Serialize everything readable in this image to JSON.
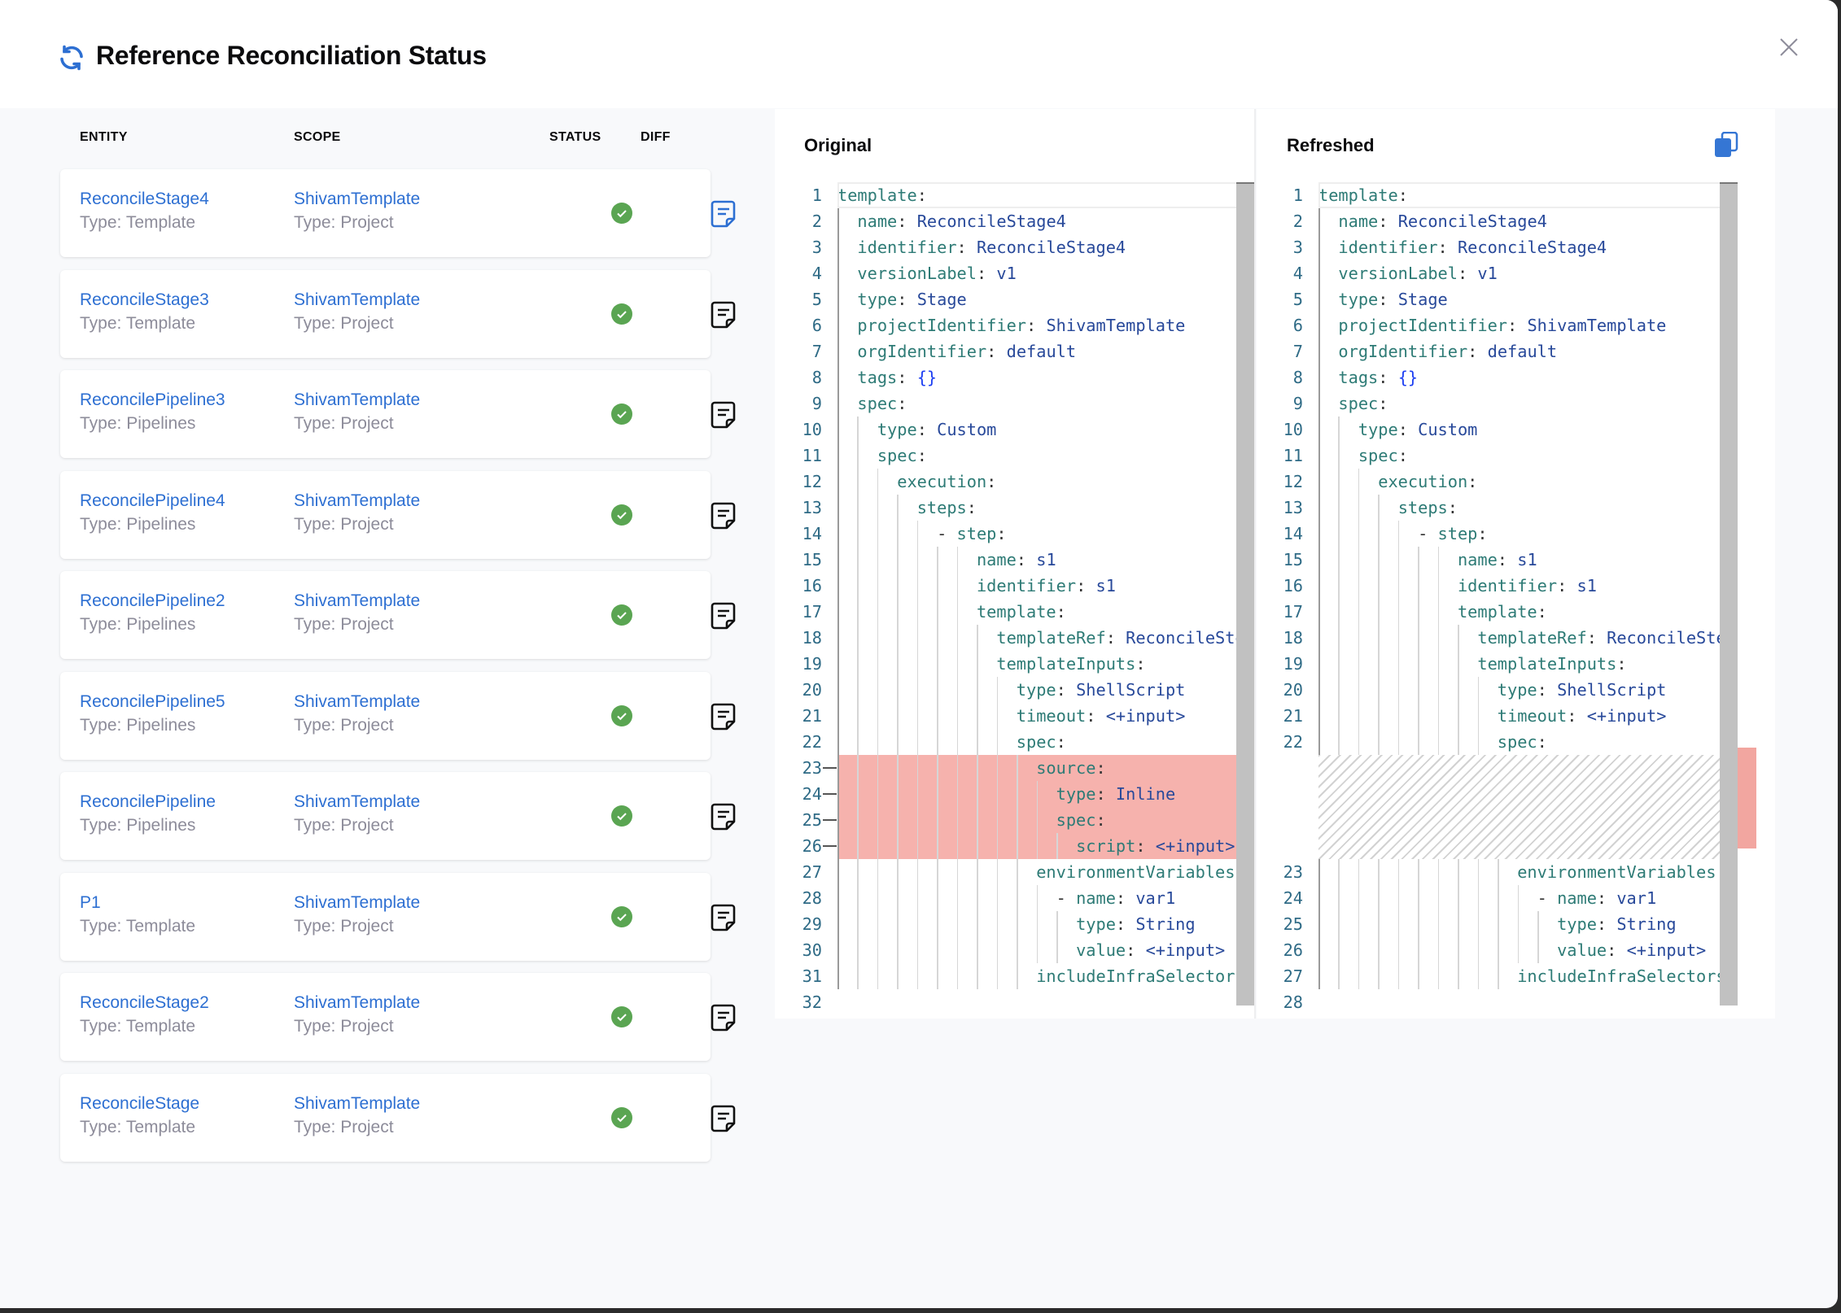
{
  "dialog": {
    "title": "Reference Reconciliation Status",
    "title_icon": "refresh-icon",
    "close_icon": "close-icon"
  },
  "colors": {
    "accent": "#2d6fd2",
    "success": "#5aa552",
    "removed": "#f6b2ad",
    "key": "#2e7b76",
    "value": "#28499a"
  },
  "table": {
    "headers": [
      "ENTITY",
      "SCOPE",
      "STATUS",
      "DIFF"
    ],
    "rows": [
      {
        "entity": "ReconcileStage4",
        "entity_type": "Type: Template",
        "scope": "ShivamTemplate",
        "scope_type": "Type: Project",
        "status": "success",
        "diff_selected": true
      },
      {
        "entity": "ReconcileStage3",
        "entity_type": "Type: Template",
        "scope": "ShivamTemplate",
        "scope_type": "Type: Project",
        "status": "success",
        "diff_selected": false
      },
      {
        "entity": "ReconcilePipeline3",
        "entity_type": "Type: Pipelines",
        "scope": "ShivamTemplate",
        "scope_type": "Type: Project",
        "status": "success",
        "diff_selected": false
      },
      {
        "entity": "ReconcilePipeline4",
        "entity_type": "Type: Pipelines",
        "scope": "ShivamTemplate",
        "scope_type": "Type: Project",
        "status": "success",
        "diff_selected": false
      },
      {
        "entity": "ReconcilePipeline2",
        "entity_type": "Type: Pipelines",
        "scope": "ShivamTemplate",
        "scope_type": "Type: Project",
        "status": "success",
        "diff_selected": false
      },
      {
        "entity": "ReconcilePipeline5",
        "entity_type": "Type: Pipelines",
        "scope": "ShivamTemplate",
        "scope_type": "Type: Project",
        "status": "success",
        "diff_selected": false
      },
      {
        "entity": "ReconcilePipeline",
        "entity_type": "Type: Pipelines",
        "scope": "ShivamTemplate",
        "scope_type": "Type: Project",
        "status": "success",
        "diff_selected": false
      },
      {
        "entity": "P1",
        "entity_type": "Type: Template",
        "scope": "ShivamTemplate",
        "scope_type": "Type: Project",
        "status": "success",
        "diff_selected": false
      },
      {
        "entity": "ReconcileStage2",
        "entity_type": "Type: Template",
        "scope": "ShivamTemplate",
        "scope_type": "Type: Project",
        "status": "success",
        "diff_selected": false
      },
      {
        "entity": "ReconcileStage",
        "entity_type": "Type: Template",
        "scope": "ShivamTemplate",
        "scope_type": "Type: Project",
        "status": "success",
        "diff_selected": false
      }
    ]
  },
  "diff": {
    "original": {
      "title": "Original",
      "removed_lines": [
        23,
        24,
        25,
        26
      ],
      "lines": [
        "template:",
        "  name: ReconcileStage4",
        "  identifier: ReconcileStage4",
        "  versionLabel: v1",
        "  type: Stage",
        "  projectIdentifier: ShivamTemplate",
        "  orgIdentifier: default",
        "  tags: {}",
        "  spec:",
        "    type: Custom",
        "    spec:",
        "      execution:",
        "        steps:",
        "          - step:",
        "              name: s1",
        "              identifier: s1",
        "              template:",
        "                templateRef: ReconcileStep",
        "                templateInputs:",
        "                  type: ShellScript",
        "                  timeout: <+input>",
        "                  spec:",
        "                    source:",
        "                      type: Inline",
        "                      spec:",
        "                        script: <+input>",
        "                    environmentVariables:",
        "                      - name: var1",
        "                        type: String",
        "                        value: <+input>",
        "                    includeInfraSelectors",
        ""
      ]
    },
    "refreshed": {
      "title": "Refreshed",
      "copy_icon": "copy-icon",
      "gap_after_line": 22,
      "gap_size": 4,
      "lines": [
        "template:",
        "  name: ReconcileStage4",
        "  identifier: ReconcileStage4",
        "  versionLabel: v1",
        "  type: Stage",
        "  projectIdentifier: ShivamTemplate",
        "  orgIdentifier: default",
        "  tags: {}",
        "  spec:",
        "    type: Custom",
        "    spec:",
        "      execution:",
        "        steps:",
        "          - step:",
        "              name: s1",
        "              identifier: s1",
        "              template:",
        "                templateRef: ReconcileStep",
        "                templateInputs:",
        "                  type: ShellScript",
        "                  timeout: <+input>",
        "                  spec:",
        "                    environmentVariables:",
        "                      - name: var1",
        "                        type: String",
        "                        value: <+input>",
        "                    includeInfraSelectors",
        ""
      ]
    }
  }
}
